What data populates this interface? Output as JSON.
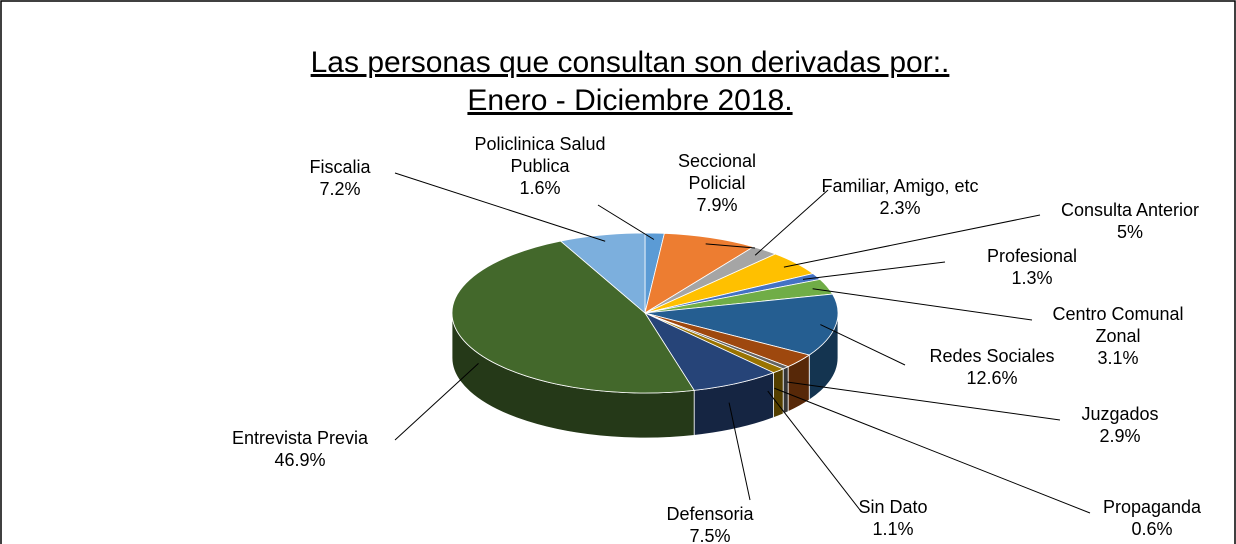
{
  "chart_data": {
    "type": "pie3d",
    "title": "Las personas que consultan son derivadas por:.",
    "subtitle": "Enero - Diciembre 2018.",
    "categories": [
      "Policlinica Salud Publica",
      "Seccional Policial",
      "Familiar, Amigo, etc",
      "Consulta Anterior",
      "Profesional",
      "Centro Comunal Zonal",
      "Redes Sociales",
      "Juzgados",
      "Propaganda",
      "Sin Dato",
      "Defensoria",
      "Entrevista Previa",
      "Fiscalia"
    ],
    "values": [
      1.6,
      7.9,
      2.3,
      5,
      1.3,
      3.1,
      12.6,
      2.9,
      0.6,
      1.1,
      7.5,
      46.9,
      7.2
    ],
    "value_labels": [
      "1.6%",
      "7.9%",
      "2.3%",
      "5%",
      "1.3%",
      "3.1%",
      "12.6%",
      "2.9%",
      "0.6%",
      "1.1%",
      "7.5%",
      "46.9%",
      "7.2%"
    ],
    "colors": [
      "#5b9bd5",
      "#ed7d31",
      "#a5a5a5",
      "#ffc000",
      "#4472c4",
      "#70ad47",
      "#255e91",
      "#9e480e",
      "#636363",
      "#997300",
      "#264478",
      "#43682b",
      "#7cafdd"
    ]
  }
}
